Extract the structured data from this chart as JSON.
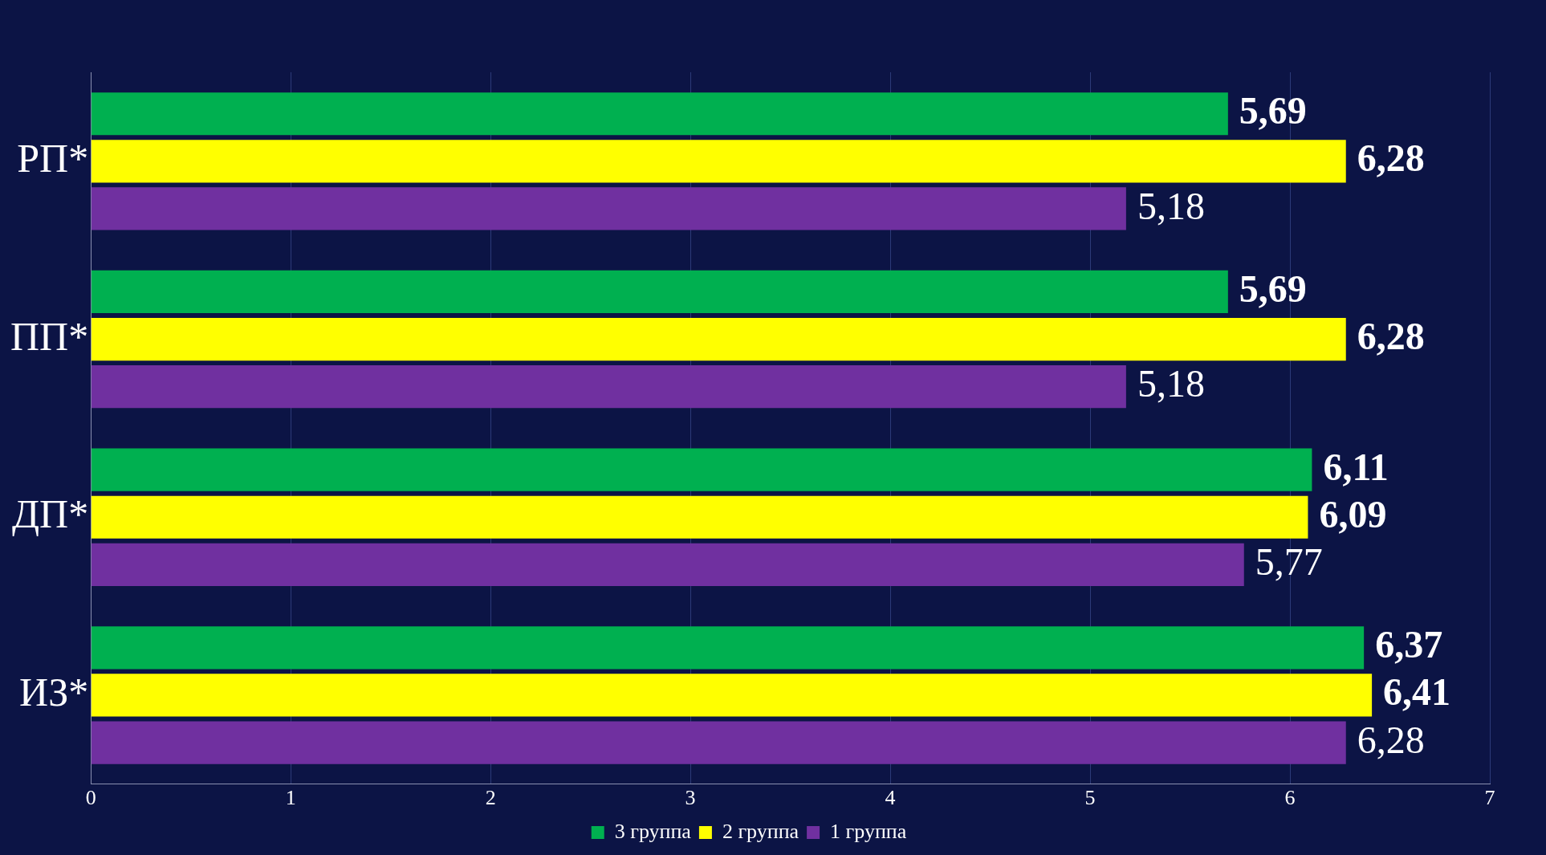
{
  "chart_data": {
    "type": "bar",
    "orientation": "horizontal",
    "categories": [
      "РП*",
      "ПП*",
      "ДП*",
      "ИЗ*"
    ],
    "series": [
      {
        "name": "3 группа",
        "color": "#00b050",
        "values": [
          5.69,
          5.69,
          6.11,
          6.37
        ],
        "value_labels": [
          "5,69",
          "5,69",
          "6,11",
          "6,37"
        ]
      },
      {
        "name": "2 группа",
        "color": "#ffff00",
        "values": [
          6.28,
          6.28,
          6.09,
          6.41
        ],
        "value_labels": [
          "6,28",
          "6,28",
          "6,09",
          "6,41"
        ]
      },
      {
        "name": "1 группа",
        "color": "#7030a0",
        "values": [
          5.18,
          5.18,
          5.77,
          6.28
        ],
        "value_labels": [
          "5,18",
          "5,18",
          "5,77",
          "6,28"
        ]
      }
    ],
    "xlim": [
      0,
      7
    ],
    "xticks": [
      0,
      1,
      2,
      3,
      4,
      5,
      6,
      7
    ],
    "grid": "x",
    "legend": "bottom"
  }
}
